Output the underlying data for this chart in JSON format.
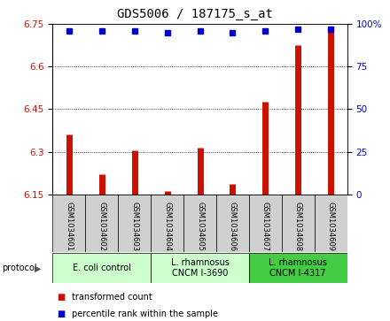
{
  "title": "GDS5006 / 187175_s_at",
  "samples": [
    "GSM1034601",
    "GSM1034602",
    "GSM1034603",
    "GSM1034604",
    "GSM1034605",
    "GSM1034606",
    "GSM1034607",
    "GSM1034608",
    "GSM1034609"
  ],
  "transformed_count": [
    6.36,
    6.22,
    6.305,
    6.16,
    6.315,
    6.185,
    6.475,
    6.675,
    6.735
  ],
  "percentile_rank": [
    96,
    96,
    96,
    95,
    96,
    95,
    96,
    97,
    97
  ],
  "ylim_left": [
    6.15,
    6.75
  ],
  "ylim_right": [
    0,
    100
  ],
  "yticks_left": [
    6.15,
    6.3,
    6.45,
    6.6,
    6.75
  ],
  "yticks_right": [
    0,
    25,
    50,
    75,
    100
  ],
  "ytick_labels_left": [
    "6.15",
    "6.3",
    "6.45",
    "6.6",
    "6.75"
  ],
  "ytick_labels_right": [
    "0",
    "25",
    "50",
    "75",
    "100%"
  ],
  "bar_color": "#cc1100",
  "dot_color": "#0000cc",
  "protocol_colors": [
    "#ccffcc",
    "#ccffcc",
    "#44cc44"
  ],
  "protocol_labels": [
    "E. coli control",
    "L. rhamnosus\nCNCM I-3690",
    "L. rhamnosus\nCNCM I-4317"
  ],
  "protocol_ranges": [
    [
      0,
      3
    ],
    [
      3,
      6
    ],
    [
      6,
      9
    ]
  ],
  "legend_labels": [
    "transformed count",
    "percentile rank within the sample"
  ],
  "legend_colors": [
    "#cc1100",
    "#0000cc"
  ],
  "sample_box_color": "#d0d0d0",
  "title_fontsize": 10,
  "tick_fontsize": 7.5,
  "sample_fontsize": 6,
  "proto_fontsize": 7,
  "legend_fontsize": 7
}
